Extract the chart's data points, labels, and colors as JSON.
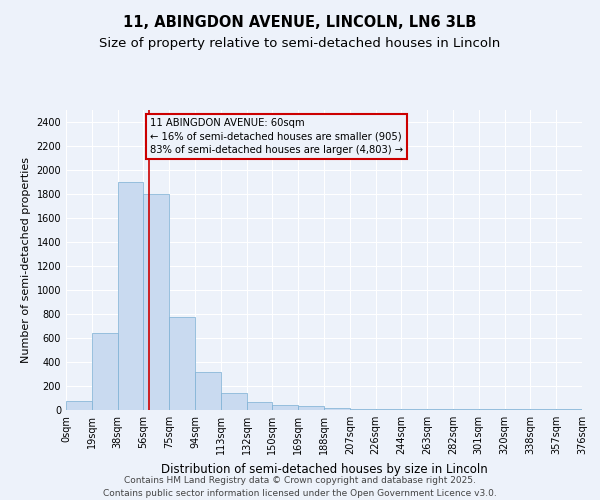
{
  "title_line1": "11, ABINGDON AVENUE, LINCOLN, LN6 3LB",
  "title_line2": "Size of property relative to semi-detached houses in Lincoln",
  "xlabel": "Distribution of semi-detached houses by size in Lincoln",
  "ylabel": "Number of semi-detached properties",
  "footnote": "Contains HM Land Registry data © Crown copyright and database right 2025.\nContains public sector information licensed under the Open Government Licence v3.0.",
  "bar_color": "#c9daf0",
  "bar_edge_color": "#7bafd4",
  "annotation_box_color": "#cc0000",
  "vline_color": "#cc0000",
  "vline_x": 3,
  "annotation_text": "11 ABINGDON AVENUE: 60sqm\n← 16% of semi-detached houses are smaller (905)\n83% of semi-detached houses are larger (4,803) →",
  "bin_edges": [
    0,
    19,
    38,
    56,
    75,
    94,
    113,
    132,
    150,
    169,
    188,
    207,
    226,
    244,
    263,
    282,
    301,
    320,
    338,
    357,
    376
  ],
  "bar_heights": [
    75,
    640,
    1900,
    1800,
    775,
    315,
    145,
    65,
    40,
    30,
    20,
    5,
    5,
    5,
    5,
    5,
    5,
    5,
    5,
    5
  ],
  "ylim": [
    0,
    2500
  ],
  "yticks": [
    0,
    200,
    400,
    600,
    800,
    1000,
    1200,
    1400,
    1600,
    1800,
    2000,
    2200,
    2400
  ],
  "background_color": "#edf2fa",
  "grid_color": "#ffffff",
  "title_fontsize": 10.5,
  "subtitle_fontsize": 9.5,
  "tick_fontsize": 7,
  "ylabel_fontsize": 8,
  "xlabel_fontsize": 8.5,
  "footnote_fontsize": 6.5
}
